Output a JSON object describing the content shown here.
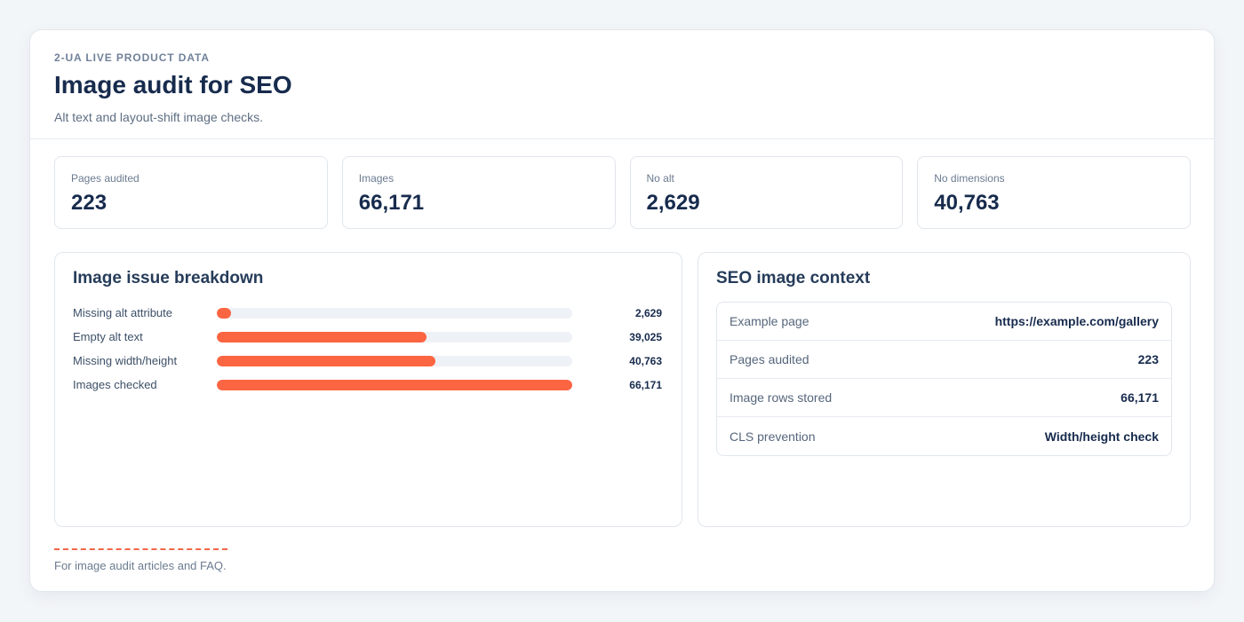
{
  "header": {
    "eyebrow": "2-UA LIVE PRODUCT DATA",
    "title": "Image audit for SEO",
    "subtitle": "Alt text and layout-shift image checks."
  },
  "stats": [
    {
      "label": "Pages audited",
      "value": "223"
    },
    {
      "label": "Images",
      "value": "66,171"
    },
    {
      "label": "No alt",
      "value": "2,629"
    },
    {
      "label": "No dimensions",
      "value": "40,763"
    }
  ],
  "breakdown": {
    "title": "Image issue breakdown",
    "accent_color": "#fb6542",
    "items": [
      {
        "label": "Missing alt attribute",
        "value": "2,629",
        "fraction": 0.0397
      },
      {
        "label": "Empty alt text",
        "value": "39,025",
        "fraction": 0.5898
      },
      {
        "label": "Missing width/height",
        "value": "40,763",
        "fraction": 0.616
      },
      {
        "label": "Images checked",
        "value": "66,171",
        "fraction": 1.0
      }
    ]
  },
  "context": {
    "title": "SEO image context",
    "rows": [
      {
        "key": "Example page",
        "value": "https://example.com/gallery"
      },
      {
        "key": "Pages audited",
        "value": "223"
      },
      {
        "key": "Image rows stored",
        "value": "66,171"
      },
      {
        "key": "CLS prevention",
        "value": "Width/height check"
      }
    ]
  },
  "footer": {
    "text": "For image audit articles and FAQ."
  }
}
